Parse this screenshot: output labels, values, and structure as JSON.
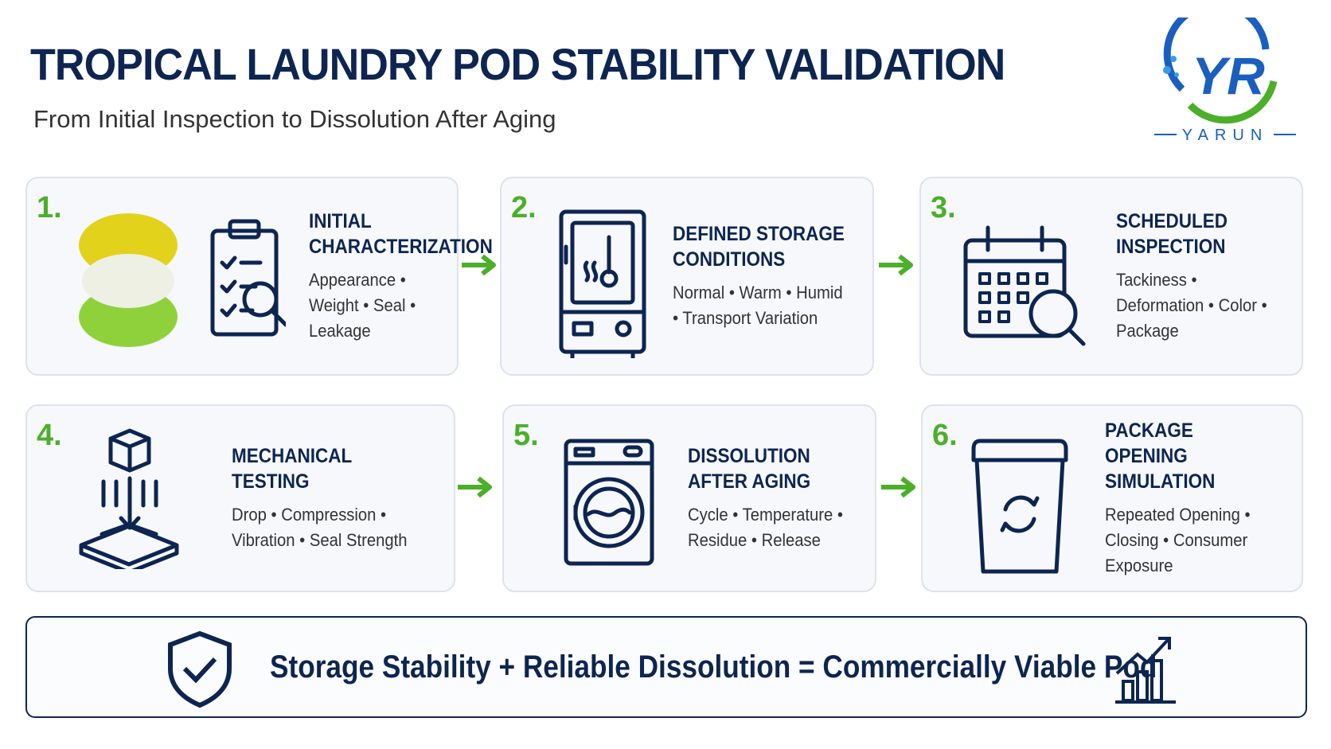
{
  "header": {
    "title": "TROPICAL LAUNDRY POD STABILITY VALIDATION",
    "subtitle": "From Initial Inspection to Dissolution After Aging"
  },
  "logo": {
    "mark": "YR",
    "name": "YARUN"
  },
  "steps": [
    {
      "number": "1.",
      "title": "INITIAL CHARACTERIZATION",
      "details": "Appearance • Weight • Seal • Leakage"
    },
    {
      "number": "2.",
      "title": "DEFINED STORAGE CONDITIONS",
      "details": "Normal • Warm • Humid • Transport Variation"
    },
    {
      "number": "3.",
      "title": "SCHEDULED INSPECTION",
      "details": "Tackiness • Deformation • Color • Package"
    },
    {
      "number": "4.",
      "title": "MECHANICAL TESTING",
      "details": "Drop • Compression • Vibration • Seal Strength"
    },
    {
      "number": "5.",
      "title": "DISSOLUTION AFTER AGING",
      "details": "Cycle • Temperature • Residue • Release"
    },
    {
      "number": "6.",
      "title": "PACKAGE OPENING SIMULATION",
      "details": "Repeated Opening • Closing • Consumer Exposure"
    }
  ],
  "footer": {
    "text": "Storage Stability + Reliable Dissolution = Commercially Viable Pod"
  }
}
